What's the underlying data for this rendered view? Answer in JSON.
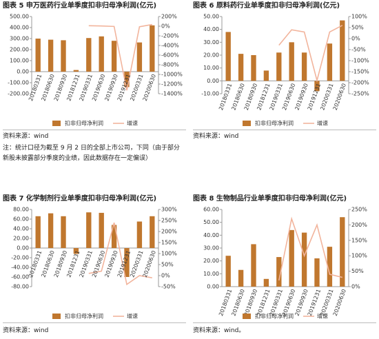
{
  "chart_data": [
    {
      "type": "bar",
      "title": "图表 5 申万医药行业单季度扣非归母净利润(亿元)",
      "categories": [
        "20180331",
        "20180630",
        "20180930",
        "20181231",
        "20190331",
        "20190630",
        "20190930",
        "20191231",
        "20200331",
        "20200630"
      ],
      "series": [
        {
          "name": "扣非归母净利润",
          "color": "#c0772e",
          "values": [
            300,
            290,
            285,
            15,
            305,
            320,
            280,
            -140,
            265,
            420
          ]
        },
        {
          "name": "增速",
          "color": "#f2b49c",
          "axis": "y2",
          "values": [
            null,
            null,
            null,
            null,
            10,
            5,
            -5,
            -1330,
            -12,
            35
          ]
        }
      ],
      "ylim": [
        -200,
        500
      ],
      "yticks": [
        {
          "value": -200,
          "label": "-200.00"
        },
        {
          "value": -100,
          "label": "-100.00"
        },
        {
          "value": 0,
          "label": "0.00"
        },
        {
          "value": 100,
          "label": "100.00"
        },
        {
          "value": 200,
          "label": "200.00"
        },
        {
          "value": 300,
          "label": "300.00"
        },
        {
          "value": 400,
          "label": "400.00"
        },
        {
          "value": 500,
          "label": "500.00"
        }
      ],
      "y2lim": [
        -1400,
        200
      ],
      "y2ticks": [
        {
          "value": -1400,
          "label": "-1400%"
        },
        {
          "value": -1200,
          "label": "-1200%"
        },
        {
          "value": -1000,
          "label": "-1000%"
        },
        {
          "value": -800,
          "label": "-800%"
        },
        {
          "value": -600,
          "label": "-600%"
        },
        {
          "value": -400,
          "label": "-400%"
        },
        {
          "value": -200,
          "label": "-200%"
        },
        {
          "value": 0,
          "label": "0%"
        },
        {
          "value": 200,
          "label": "200%"
        }
      ]
    },
    {
      "type": "bar",
      "title": "图表 6 原料药行业单季度扣非归母净利润(亿元)",
      "categories": [
        "20180331",
        "20180630",
        "20180930",
        "20181231",
        "20190331",
        "20190630",
        "20190930",
        "20191231",
        "20200331",
        "20200630"
      ],
      "series": [
        {
          "name": "扣非归母净利润",
          "color": "#c0772e",
          "values": [
            38,
            21,
            20,
            8,
            22,
            30,
            22,
            -8,
            29,
            47
          ]
        },
        {
          "name": "增速",
          "color": "#f2b49c",
          "axis": "y2",
          "values": [
            null,
            null,
            null,
            null,
            -30,
            40,
            30,
            -190,
            30,
            60
          ]
        }
      ],
      "ylim": [
        -10,
        50
      ],
      "yticks": [
        {
          "value": -10,
          "label": "-10.00"
        },
        {
          "value": 0,
          "label": "0.00"
        },
        {
          "value": 10,
          "label": "10.00"
        },
        {
          "value": 20,
          "label": "20.00"
        },
        {
          "value": 30,
          "label": "30.00"
        },
        {
          "value": 40,
          "label": "40.00"
        },
        {
          "value": 50,
          "label": "50.00"
        }
      ],
      "y2lim": [
        -250,
        100
      ],
      "y2ticks": [
        {
          "value": -250,
          "label": "-250%"
        },
        {
          "value": -200,
          "label": "-200%"
        },
        {
          "value": -150,
          "label": "-150%"
        },
        {
          "value": -100,
          "label": "-100%"
        },
        {
          "value": -50,
          "label": "-50%"
        },
        {
          "value": 0,
          "label": "0%"
        },
        {
          "value": 50,
          "label": "50%"
        },
        {
          "value": 100,
          "label": "100%"
        }
      ]
    },
    {
      "type": "bar",
      "title": "图表 7 化学制剂行业单季度扣非归母净利润(亿元)",
      "categories": [
        "20180331",
        "20180630",
        "20180930",
        "20181231",
        "20190331",
        "20190630",
        "20190930",
        "20191231",
        "20200331",
        "20200630"
      ],
      "series": [
        {
          "name": "扣非归母净利润",
          "color": "#c0772e",
          "values": [
            66,
            72,
            66,
            -12,
            74,
            73,
            48,
            -60,
            55,
            66
          ]
        },
        {
          "name": "增速",
          "color": "#f2b49c",
          "axis": "y2",
          "values": [
            null,
            null,
            null,
            null,
            10,
            20,
            240,
            -40,
            0,
            -10
          ]
        }
      ],
      "ylim": [
        -80,
        80
      ],
      "yticks": [
        {
          "value": -80,
          "label": "-80.00"
        },
        {
          "value": -60,
          "label": "-60.00"
        },
        {
          "value": -40,
          "label": "-40.00"
        },
        {
          "value": -20,
          "label": "-20.00"
        },
        {
          "value": 0,
          "label": "0.00"
        },
        {
          "value": 20,
          "label": "20.00"
        },
        {
          "value": 40,
          "label": "40.00"
        },
        {
          "value": 60,
          "label": "60.00"
        },
        {
          "value": 80,
          "label": "80.00"
        }
      ],
      "y2lim": [
        -50,
        300
      ],
      "y2ticks": [
        {
          "value": -50,
          "label": "-50%"
        },
        {
          "value": 0,
          "label": "0%"
        },
        {
          "value": 50,
          "label": "50%"
        },
        {
          "value": 100,
          "label": "100%"
        },
        {
          "value": 150,
          "label": "150%"
        },
        {
          "value": 200,
          "label": "200%"
        },
        {
          "value": 250,
          "label": "250%"
        },
        {
          "value": 300,
          "label": "300%"
        }
      ]
    },
    {
      "type": "bar",
      "title": "图表 8 生物制品行业单季度扣非归母净利润(亿元)",
      "categories": [
        "20180331",
        "20180630",
        "20180930",
        "20181231",
        "20190331",
        "20190630",
        "20190930",
        "20191231",
        "20200331",
        "20200630"
      ],
      "series": [
        {
          "name": "扣非归母净利润",
          "color": "#c0772e",
          "values": [
            24,
            13,
            33,
            6,
            23,
            44,
            42,
            22,
            31,
            54
          ]
        },
        {
          "name": "增速",
          "color": "#f2b49c",
          "axis": "y2",
          "values": [
            null,
            null,
            null,
            null,
            20,
            220,
            100,
            200,
            40,
            30
          ]
        }
      ],
      "ylim": [
        0,
        60
      ],
      "yticks": [
        {
          "value": 0,
          "label": "0.00"
        },
        {
          "value": 10,
          "label": "10.00"
        },
        {
          "value": 20,
          "label": "20.00"
        },
        {
          "value": 30,
          "label": "30.00"
        },
        {
          "value": 40,
          "label": "40.00"
        },
        {
          "value": 50,
          "label": "50.00"
        },
        {
          "value": 60,
          "label": "60.00"
        }
      ],
      "y2lim": [
        0,
        250
      ],
      "y2ticks": [
        {
          "value": 0,
          "label": "0%"
        },
        {
          "value": 50,
          "label": "50%"
        },
        {
          "value": 100,
          "label": "100%"
        },
        {
          "value": 150,
          "label": "150%"
        },
        {
          "value": 200,
          "label": "200%"
        },
        {
          "value": 250,
          "label": "250%"
        }
      ]
    }
  ],
  "document": {
    "sources": [
      "资料来源：wind",
      "资料来源：wind",
      "资料来源：wind",
      "资料来源：wind。"
    ],
    "note": [
      "注：统计口径为截至 9 月 2 日的全部上市公司，下同（由于部分",
      "新股未披露部分季度的业绩，因此数据存在一定偏误）"
    ]
  }
}
